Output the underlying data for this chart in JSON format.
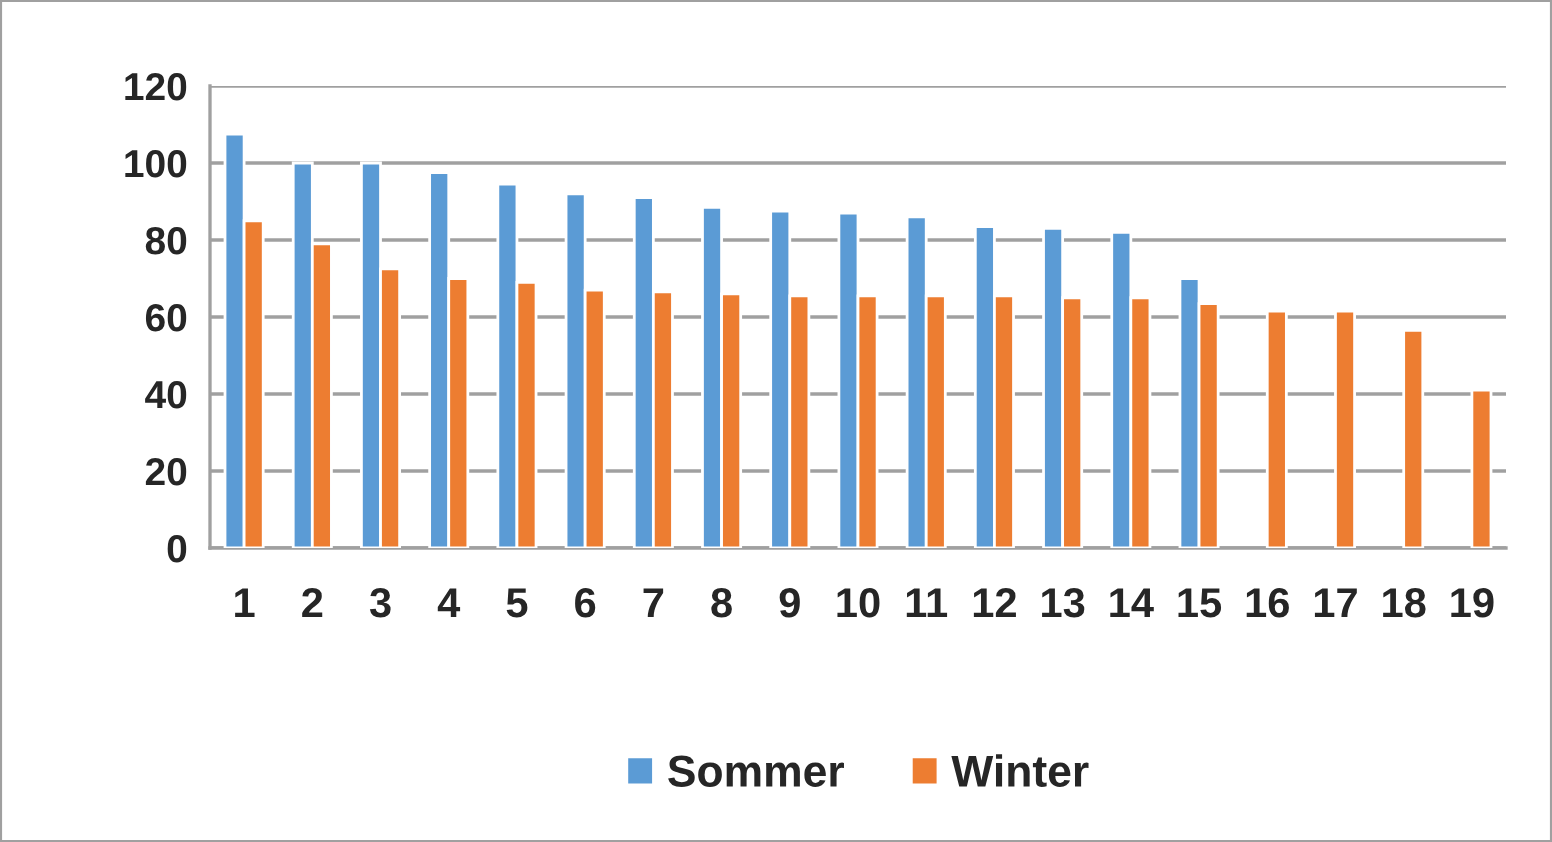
{
  "chart_data": {
    "type": "bar",
    "categories": [
      "1",
      "2",
      "3",
      "4",
      "5",
      "6",
      "7",
      "8",
      "9",
      "10",
      "11",
      "12",
      "13",
      "14",
      "15",
      "16",
      "17",
      "18",
      "19"
    ],
    "series": [
      {
        "name": "Sommer",
        "color": "#5b9bd5",
        "values": [
          107.5,
          100,
          100,
          97.5,
          94.5,
          92,
          91,
          88.5,
          87.5,
          87,
          86,
          83.5,
          83,
          82,
          70,
          null,
          null,
          null,
          null
        ]
      },
      {
        "name": "Winter",
        "color": "#ed7d31",
        "values": [
          85,
          79,
          72.5,
          70,
          69,
          67,
          66.5,
          66,
          65.5,
          65.5,
          65.5,
          65.5,
          65,
          65,
          63.5,
          61.5,
          61.5,
          56.5,
          41
        ]
      }
    ],
    "ylim": [
      0,
      120
    ],
    "yticks": [
      0,
      20,
      40,
      60,
      80,
      100,
      120
    ],
    "grid": "y",
    "legend": "bottom"
  }
}
